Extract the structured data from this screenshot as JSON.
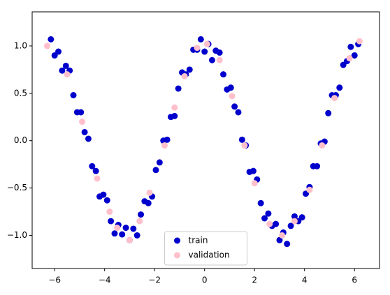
{
  "chart_data": {
    "type": "scatter",
    "legend": "lower center",
    "xlim": [
      -6.9,
      7.0
    ],
    "ylim": [
      -1.35,
      1.36
    ],
    "xticks": [
      {
        "value": -6,
        "label": "−6"
      },
      {
        "value": -4,
        "label": "−4"
      },
      {
        "value": -2,
        "label": "−2"
      },
      0,
      2,
      4,
      6
    ],
    "yticks": [
      {
        "value": -1,
        "label": "−1.0"
      },
      {
        "value": -0.5,
        "label": "−0.5"
      },
      {
        "value": 0,
        "label": "0.0"
      },
      {
        "value": 0.5,
        "label": "0.5"
      },
      {
        "value": 1,
        "label": "1.0"
      }
    ],
    "series": [
      {
        "name": "train",
        "color": "#0000cd",
        "x": [
          -6.15,
          -6.0,
          -5.85,
          -5.7,
          -5.55,
          -5.4,
          -5.25,
          -5.1,
          -4.95,
          -4.8,
          -4.65,
          -4.5,
          -4.35,
          -4.2,
          -4.05,
          -3.9,
          -3.75,
          -3.6,
          -3.45,
          -3.3,
          -3.15,
          -3.0,
          -2.85,
          -2.7,
          -2.55,
          -2.4,
          -2.25,
          -2.1,
          -1.95,
          -1.8,
          -1.65,
          -1.5,
          -1.35,
          -1.2,
          -1.05,
          -0.9,
          -0.75,
          -0.6,
          -0.45,
          -0.3,
          -0.15,
          0,
          0.15,
          0.3,
          0.45,
          0.6,
          0.75,
          0.9,
          1.05,
          1.2,
          1.35,
          1.5,
          1.65,
          1.8,
          1.95,
          2.1,
          2.25,
          2.4,
          2.55,
          2.7,
          2.85,
          3.0,
          3.15,
          3.3,
          3.45,
          3.6,
          3.75,
          3.9,
          4.05,
          4.2,
          4.35,
          4.5,
          4.65,
          4.8,
          4.95,
          5.1,
          5.25,
          5.4,
          5.55,
          5.7,
          5.85,
          6.0,
          6.15
        ],
        "values": [
          1.07,
          0.9,
          0.94,
          0.74,
          0.79,
          0.74,
          0.48,
          0.3,
          0.3,
          0.09,
          0.02,
          -0.27,
          -0.32,
          -0.59,
          -0.57,
          -0.63,
          -0.85,
          -0.98,
          -0.89,
          -0.99,
          -0.92,
          -1.05,
          -0.93,
          -1.0,
          -0.78,
          -0.64,
          -0.66,
          -0.59,
          -0.31,
          -0.23,
          0.0,
          0.01,
          0.25,
          0.26,
          0.55,
          0.72,
          0.7,
          0.75,
          0.96,
          0.96,
          1.07,
          0.94,
          1.02,
          0.85,
          0.95,
          0.93,
          0.7,
          0.54,
          0.56,
          0.36,
          0.3,
          0.01,
          -0.05,
          -0.33,
          -0.32,
          -0.41,
          -0.66,
          -0.82,
          -0.77,
          -0.9,
          -0.88,
          -1.05,
          -0.97,
          -1.09,
          -0.9,
          -0.8,
          -0.85,
          -0.81,
          -0.56,
          -0.49,
          -0.27,
          -0.27,
          -0.03,
          -0.01,
          0.29,
          0.48,
          0.48,
          0.56,
          0.8,
          0.84,
          0.99,
          0.9,
          1.02
        ]
      },
      {
        "name": "validation",
        "color": "#ffc0cb",
        "x": [
          -6.3,
          -5.5,
          -4.9,
          -4.3,
          -3.8,
          -3.5,
          -3.0,
          -2.6,
          -2.2,
          -1.6,
          -1.2,
          -0.8,
          -0.3,
          0.1,
          0.6,
          1.1,
          1.6,
          2.0,
          2.6,
          3.1,
          3.6,
          4.2,
          4.7,
          5.2,
          5.8,
          6.2
        ],
        "values": [
          1.0,
          0.7,
          0.2,
          -0.4,
          -0.75,
          -0.92,
          -1.05,
          -0.85,
          -0.55,
          -0.05,
          0.35,
          0.68,
          0.98,
          1.02,
          0.85,
          0.47,
          -0.05,
          -0.45,
          -0.88,
          -1.0,
          -0.85,
          -0.52,
          -0.05,
          0.45,
          0.87,
          1.05
        ]
      }
    ]
  }
}
